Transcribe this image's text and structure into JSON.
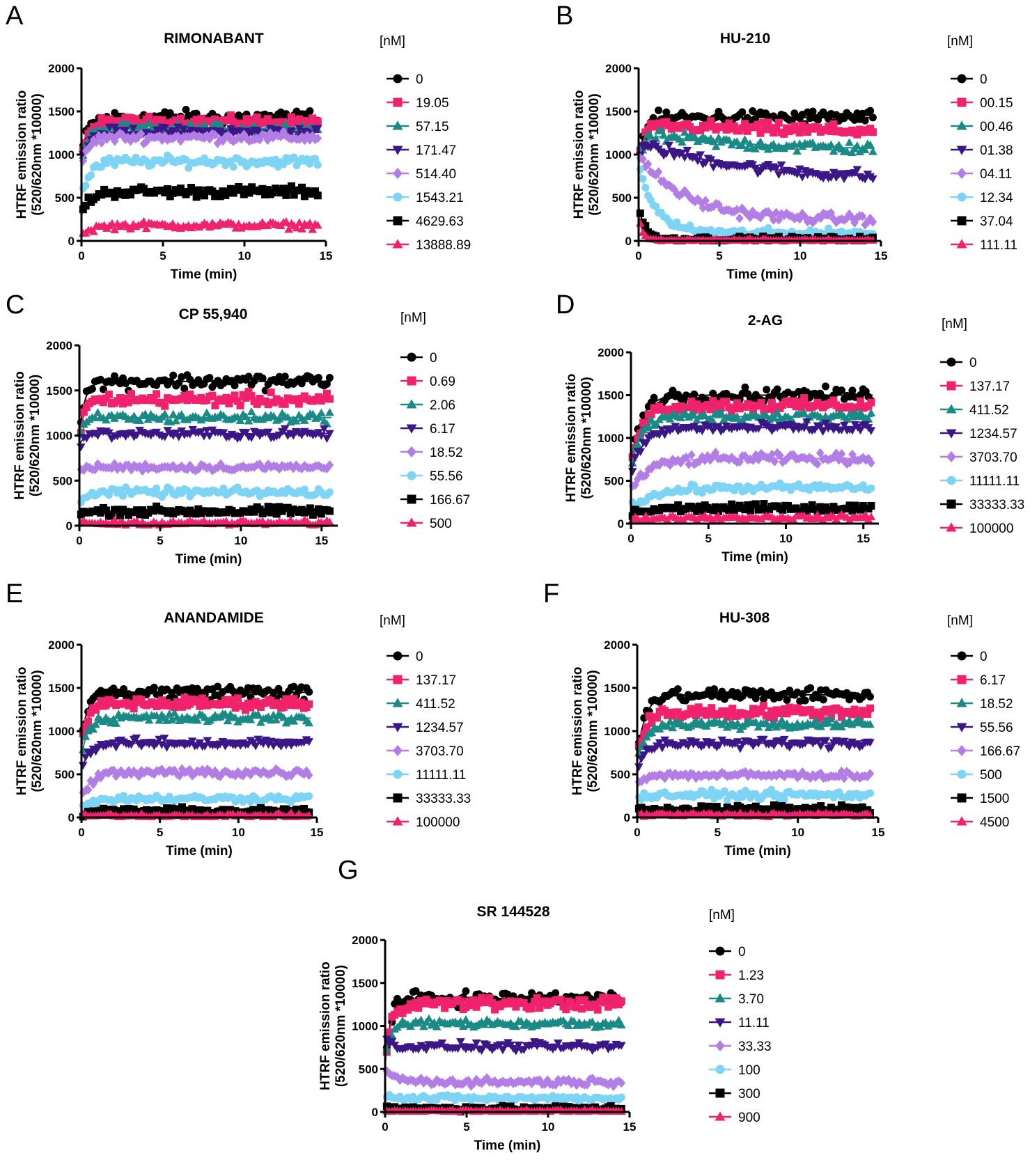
{
  "series_colors": [
    "#000000",
    "#f0226b",
    "#1a8a86",
    "#3b1687",
    "#b27ee5",
    "#7dd4f5",
    "#000000",
    "#f0226b"
  ],
  "series_markers": [
    "circle",
    "square",
    "triangle",
    "triangle-down",
    "diamond",
    "circle",
    "square",
    "triangle"
  ],
  "chart_data": [
    {
      "panel": "A",
      "type": "scatter",
      "title": "RIMONABANT",
      "xlabel": "Time (min)",
      "ylabel": [
        "HTRF emission ratio",
        "(520/620nm *10000)"
      ],
      "xlim": [
        0,
        15
      ],
      "ylim": [
        0,
        2000
      ],
      "xticks": [
        "0",
        "5",
        "10",
        "15"
      ],
      "yticks": [
        "0",
        "500",
        "1000",
        "1500",
        "2000"
      ],
      "legend_title": "[nM]",
      "series": [
        {
          "name": "0",
          "plateau": 1430,
          "start": 1000,
          "rate": 2.5,
          "noise": 70
        },
        {
          "name": "19.05",
          "plateau": 1380,
          "start": 950,
          "rate": 2.5,
          "noise": 50
        },
        {
          "name": "57.15",
          "plateau": 1300,
          "start": 900,
          "rate": 2.5,
          "noise": 50
        },
        {
          "name": "171.47",
          "plateau": 1260,
          "start": 880,
          "rate": 2.5,
          "noise": 50
        },
        {
          "name": "514.40",
          "plateau": 1200,
          "start": 850,
          "rate": 2.5,
          "noise": 50
        },
        {
          "name": "1543.21",
          "plateau": 920,
          "start": 500,
          "rate": 2.0,
          "noise": 50
        },
        {
          "name": "4629.63",
          "plateau": 570,
          "start": 300,
          "rate": 2.0,
          "noise": 50
        },
        {
          "name": "13888.89",
          "plateau": 180,
          "start": 60,
          "rate": 1.5,
          "noise": 35
        }
      ]
    },
    {
      "panel": "B",
      "type": "scatter",
      "title": "HU-210",
      "xlabel": "Time (min)",
      "ylabel": [
        "HTRF emission ratio",
        "(520/620nm *10000)"
      ],
      "xlim": [
        0,
        15
      ],
      "ylim": [
        0,
        2000
      ],
      "xticks": [
        "0",
        "5",
        "10",
        "15"
      ],
      "yticks": [
        "0",
        "500",
        "1000",
        "1500",
        "2000"
      ],
      "legend_title": "[nM]",
      "series": [
        {
          "name": "0",
          "plateau": 1430,
          "start": 950,
          "rate": 2.5,
          "noise": 70
        },
        {
          "name": "00.15",
          "plateau": 1350,
          "start": 950,
          "rate": 2.5,
          "noise": 60,
          "end": 1250,
          "decay": 0.1
        },
        {
          "name": "00.46",
          "plateau": 1250,
          "start": 950,
          "rate": 2.5,
          "noise": 60,
          "end": 1050,
          "decay": 0.15
        },
        {
          "name": "01.38",
          "plateau": 1150,
          "start": 950,
          "rate": 3.0,
          "noise": 60,
          "end": 700,
          "decay": 0.15
        },
        {
          "name": "04.11",
          "plateau": 1000,
          "start": 950,
          "rate": 4.0,
          "noise": 50,
          "end": 250,
          "decay": 0.35
        },
        {
          "name": "12.34",
          "plateau": 850,
          "start": 850,
          "rate": 4.0,
          "noise": 40,
          "end": 90,
          "decay": 0.9
        },
        {
          "name": "37.04",
          "plateau": 400,
          "start": 400,
          "rate": 4.0,
          "noise": 25,
          "end": 20,
          "decay": 2.5
        },
        {
          "name": "111.11",
          "plateau": 280,
          "start": 280,
          "rate": 4.0,
          "noise": 15,
          "end": 5,
          "decay": 4.0
        }
      ]
    },
    {
      "panel": "C",
      "type": "scatter",
      "title": "CP 55,940",
      "xlabel": "Time (min)",
      "ylabel": [
        "HTRF emission ratio",
        "(520/620nm *10000)"
      ],
      "xlim": [
        0,
        16
      ],
      "ylim": [
        0,
        2000
      ],
      "xticks": [
        "0",
        "5",
        "10",
        "15"
      ],
      "yticks": [
        "0",
        "500",
        "1000",
        "1500",
        "2000"
      ],
      "legend_title": "[nM]",
      "series": [
        {
          "name": "0",
          "plateau": 1600,
          "start": 1000,
          "rate": 3.0,
          "noise": 70
        },
        {
          "name": "0.69",
          "plateau": 1400,
          "start": 1000,
          "rate": 3.0,
          "noise": 60
        },
        {
          "name": "2.06",
          "plateau": 1200,
          "start": 950,
          "rate": 3.0,
          "noise": 50
        },
        {
          "name": "6.17",
          "plateau": 1020,
          "start": 900,
          "rate": 3.0,
          "noise": 45
        },
        {
          "name": "18.52",
          "plateau": 650,
          "start": 600,
          "rate": 3.0,
          "noise": 35
        },
        {
          "name": "55.56",
          "plateau": 370,
          "start": 280,
          "rate": 3.0,
          "noise": 40
        },
        {
          "name": "166.67",
          "plateau": 160,
          "start": 100,
          "rate": 3.0,
          "noise": 40
        },
        {
          "name": "500",
          "plateau": 30,
          "start": 20,
          "rate": 3.0,
          "noise": 25
        }
      ]
    },
    {
      "panel": "D",
      "type": "scatter",
      "title": "2-AG",
      "xlabel": "Time (min)",
      "ylabel": [
        "HTRF emission ratio",
        "(520/620nm *10000)"
      ],
      "xlim": [
        0,
        16
      ],
      "ylim": [
        0,
        2000
      ],
      "xticks": [
        "0",
        "5",
        "10",
        "15"
      ],
      "yticks": [
        "0",
        "500",
        "1000",
        "1500",
        "2000"
      ],
      "legend_title": "[nM]",
      "series": [
        {
          "name": "0",
          "plateau": 1500,
          "start": 700,
          "rate": 1.5,
          "noise": 70
        },
        {
          "name": "137.17",
          "plateau": 1380,
          "start": 700,
          "rate": 1.5,
          "noise": 60
        },
        {
          "name": "411.52",
          "plateau": 1250,
          "start": 650,
          "rate": 1.5,
          "noise": 50
        },
        {
          "name": "1234.57",
          "plateau": 1120,
          "start": 600,
          "rate": 1.2,
          "noise": 50
        },
        {
          "name": "3703.70",
          "plateau": 760,
          "start": 400,
          "rate": 0.8,
          "noise": 50
        },
        {
          "name": "11111.11",
          "plateau": 420,
          "start": 200,
          "rate": 0.6,
          "noise": 40
        },
        {
          "name": "33333.33",
          "plateau": 180,
          "start": 100,
          "rate": 1.0,
          "noise": 40
        },
        {
          "name": "100000",
          "plateau": 70,
          "start": 40,
          "rate": 1.0,
          "noise": 25
        }
      ]
    },
    {
      "panel": "E",
      "type": "scatter",
      "title": "ANANDAMIDE",
      "xlabel": "Time (min)",
      "ylabel": [
        "HTRF emission ratio",
        "(520/620nm *10000)"
      ],
      "xlim": [
        0,
        15
      ],
      "ylim": [
        0,
        2000
      ],
      "xticks": [
        "0",
        "5",
        "10",
        "15"
      ],
      "yticks": [
        "0",
        "500",
        "1000",
        "1500",
        "2000"
      ],
      "legend_title": "[nM]",
      "series": [
        {
          "name": "0",
          "plateau": 1450,
          "start": 900,
          "rate": 2.5,
          "noise": 70
        },
        {
          "name": "137.17",
          "plateau": 1320,
          "start": 800,
          "rate": 2.5,
          "noise": 55
        },
        {
          "name": "411.52",
          "plateau": 1150,
          "start": 700,
          "rate": 2.5,
          "noise": 50
        },
        {
          "name": "1234.57",
          "plateau": 860,
          "start": 550,
          "rate": 2.0,
          "noise": 45
        },
        {
          "name": "3703.70",
          "plateau": 520,
          "start": 250,
          "rate": 1.5,
          "noise": 45
        },
        {
          "name": "11111.11",
          "plateau": 220,
          "start": 120,
          "rate": 1.5,
          "noise": 35
        },
        {
          "name": "33333.33",
          "plateau": 70,
          "start": 40,
          "rate": 1.5,
          "noise": 35
        },
        {
          "name": "100000",
          "plateau": 20,
          "start": 10,
          "rate": 1.5,
          "noise": 20
        }
      ]
    },
    {
      "panel": "F",
      "type": "scatter",
      "title": "HU-308",
      "xlabel": "Time (min)",
      "ylabel": [
        "HTRF emission ratio",
        "(520/620nm *10000)"
      ],
      "xlim": [
        0,
        15
      ],
      "ylim": [
        0,
        2000
      ],
      "xticks": [
        "0",
        "5",
        "10",
        "15"
      ],
      "yticks": [
        "0",
        "500",
        "1000",
        "1500",
        "2000"
      ],
      "legend_title": "[nM]",
      "series": [
        {
          "name": "0",
          "plateau": 1420,
          "start": 700,
          "rate": 2.0,
          "noise": 70
        },
        {
          "name": "6.17",
          "plateau": 1220,
          "start": 700,
          "rate": 2.0,
          "noise": 60
        },
        {
          "name": "18.52",
          "plateau": 1080,
          "start": 650,
          "rate": 2.0,
          "noise": 50
        },
        {
          "name": "55.56",
          "plateau": 860,
          "start": 550,
          "rate": 2.0,
          "noise": 45
        },
        {
          "name": "166.67",
          "plateau": 490,
          "start": 400,
          "rate": 2.5,
          "noise": 35
        },
        {
          "name": "500",
          "plateau": 260,
          "start": 200,
          "rate": 2.5,
          "noise": 40
        },
        {
          "name": "1500",
          "plateau": 90,
          "start": 60,
          "rate": 2.5,
          "noise": 40
        },
        {
          "name": "4500",
          "plateau": 30,
          "start": 20,
          "rate": 2.5,
          "noise": 20
        }
      ]
    },
    {
      "panel": "G",
      "type": "scatter",
      "title": "SR 144528",
      "xlabel": "Time (min)",
      "ylabel": [
        "HTRF emission ratio",
        "(520/620nm *10000)"
      ],
      "xlim": [
        0,
        15
      ],
      "ylim": [
        0,
        2000
      ],
      "xticks": [
        "0",
        "5",
        "10",
        "15"
      ],
      "yticks": [
        "0",
        "500",
        "1000",
        "1500",
        "2000"
      ],
      "legend_title": "[nM]",
      "series": [
        {
          "name": "0",
          "plateau": 1320,
          "start": 550,
          "rate": 3.0,
          "noise": 65
        },
        {
          "name": "1.23",
          "plateau": 1260,
          "start": 550,
          "rate": 3.0,
          "noise": 60
        },
        {
          "name": "3.70",
          "plateau": 1030,
          "start": 600,
          "rate": 3.0,
          "noise": 45
        },
        {
          "name": "11.11",
          "plateau": 760,
          "start": 850,
          "rate": 3.0,
          "noise": 40
        },
        {
          "name": "33.33",
          "plateau": 350,
          "start": 500,
          "rate": 1.5,
          "noise": 35
        },
        {
          "name": "100",
          "plateau": 160,
          "start": 220,
          "rate": 2.0,
          "noise": 30
        },
        {
          "name": "300",
          "plateau": 40,
          "start": 60,
          "rate": 2.0,
          "noise": 25
        },
        {
          "name": "900",
          "plateau": 10,
          "start": 10,
          "rate": 2.0,
          "noise": 15
        }
      ]
    }
  ]
}
